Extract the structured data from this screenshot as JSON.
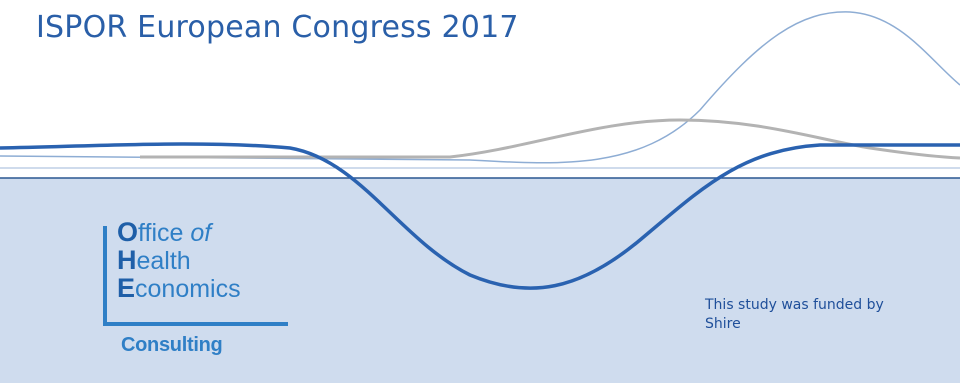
{
  "title": "ISPOR European Congress 2017",
  "logo": {
    "line1_cap": "O",
    "line1_rest": "ffice",
    "line1_of": "of",
    "line2_cap": "H",
    "line2_rest": "ealth",
    "line3_cap": "E",
    "line3_rest": "conomics",
    "consulting": "Consulting"
  },
  "funding_note": "This study was funded by Shire",
  "colors": {
    "title": "#2a5fa8",
    "panel": "#cfdcee",
    "wave_dark": "#2a62b0",
    "wave_thin": "#8eadd4",
    "wave_grey": "#b3b3b3",
    "logo_blue": "#2f7fc6"
  }
}
